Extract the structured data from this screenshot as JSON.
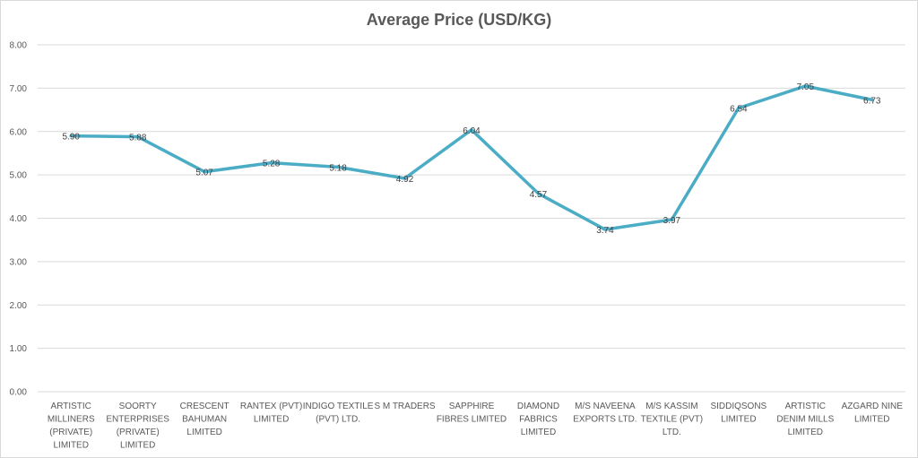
{
  "chart_data": {
    "type": "line",
    "title": "Average Price (USD/KG)",
    "xlabel": "",
    "ylabel": "",
    "ylim": [
      0,
      8
    ],
    "y_ticks": [
      "0.00",
      "1.00",
      "2.00",
      "3.00",
      "4.00",
      "5.00",
      "6.00",
      "7.00",
      "8.00"
    ],
    "grid": true,
    "legend": "none",
    "categories": [
      "ARTISTIC MILLINERS (PRIVATE) LIMITED",
      "SOORTY ENTERPRISES (PRIVATE) LIMITED",
      "CRESCENT BAHUMAN LIMITED",
      "RANTEX (PVT) LIMITED",
      "INDIGO TEXTILE (PVT) LTD.",
      "S M TRADERS",
      "SAPPHIRE FIBRES LIMITED",
      "DIAMOND FABRICS LIMITED",
      "M/S NAVEENA EXPORTS LTD.",
      "M/S KASSIM TEXTILE (PVT) LTD.",
      "SIDDIQSONS LIMITED",
      "ARTISTIC DENIM MILLS LIMITED",
      "AZGARD NINE LIMITED"
    ],
    "category_lines": [
      [
        "ARTISTIC",
        "MILLINERS",
        "(PRIVATE)",
        "LIMITED"
      ],
      [
        "SOORTY",
        "ENTERPRISES",
        "(PRIVATE)",
        "LIMITED"
      ],
      [
        "CRESCENT",
        "BAHUMAN",
        "LIMITED"
      ],
      [
        "RANTEX (PVT)",
        "LIMITED"
      ],
      [
        "INDIGO TEXTILE",
        "(PVT) LTD."
      ],
      [
        "S M TRADERS"
      ],
      [
        "SAPPHIRE",
        "FIBRES LIMITED"
      ],
      [
        "DIAMOND",
        "FABRICS",
        "LIMITED"
      ],
      [
        "M/S NAVEENA",
        "EXPORTS LTD."
      ],
      [
        "M/S KASSIM",
        "TEXTILE (PVT)",
        "LTD."
      ],
      [
        "SIDDIQSONS",
        "LIMITED"
      ],
      [
        "ARTISTIC",
        "DENIM MILLS",
        "LIMITED"
      ],
      [
        "AZGARD NINE",
        "LIMITED"
      ]
    ],
    "values": [
      5.9,
      5.88,
      5.07,
      5.28,
      5.18,
      4.92,
      6.04,
      4.57,
      3.74,
      3.97,
      6.54,
      7.05,
      6.73
    ],
    "data_labels": [
      "5.90",
      "5.88",
      "5.07",
      "5.28",
      "5.18",
      "4.92",
      "6.04",
      "4.57",
      "3.74",
      "3.97",
      "6.54",
      "7.05",
      "6.73"
    ],
    "colors": {
      "line": "#4bacc6",
      "grid": "#d9d9d9",
      "text": "#595959"
    }
  }
}
